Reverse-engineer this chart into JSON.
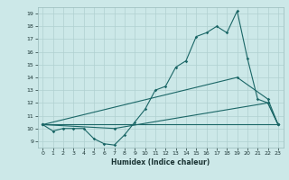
{
  "xlabel": "Humidex (Indice chaleur)",
  "xlim": [
    -0.5,
    23.5
  ],
  "ylim": [
    8.5,
    19.5
  ],
  "xticks": [
    0,
    1,
    2,
    3,
    4,
    5,
    6,
    7,
    8,
    9,
    10,
    11,
    12,
    13,
    14,
    15,
    16,
    17,
    18,
    19,
    20,
    21,
    22,
    23
  ],
  "yticks": [
    9,
    10,
    11,
    12,
    13,
    14,
    15,
    16,
    17,
    18,
    19
  ],
  "bg_color": "#cce8e8",
  "grid_color": "#b0d0d0",
  "line_color": "#1a6666",
  "line1_x": [
    0,
    1,
    2,
    3,
    4,
    5,
    6,
    7,
    8,
    9,
    10,
    11,
    12,
    13,
    14,
    15,
    16,
    17,
    18,
    19,
    20,
    21,
    22,
    23
  ],
  "line1_y": [
    10.3,
    9.8,
    10.0,
    10.0,
    10.0,
    9.2,
    8.8,
    8.7,
    9.5,
    10.5,
    11.5,
    13.0,
    13.3,
    14.8,
    15.3,
    17.2,
    17.5,
    18.0,
    17.5,
    19.2,
    15.5,
    12.3,
    12.0,
    10.3
  ],
  "line2_x": [
    0,
    7,
    22,
    23
  ],
  "line2_y": [
    10.3,
    10.0,
    12.0,
    10.3
  ],
  "line3_x": [
    0,
    23
  ],
  "line3_y": [
    10.3,
    10.3
  ],
  "line4_x": [
    0,
    19,
    22,
    23
  ],
  "line4_y": [
    10.3,
    14.0,
    12.3,
    10.3
  ],
  "marker": "D",
  "markersize": 1.8,
  "linewidth": 0.8
}
